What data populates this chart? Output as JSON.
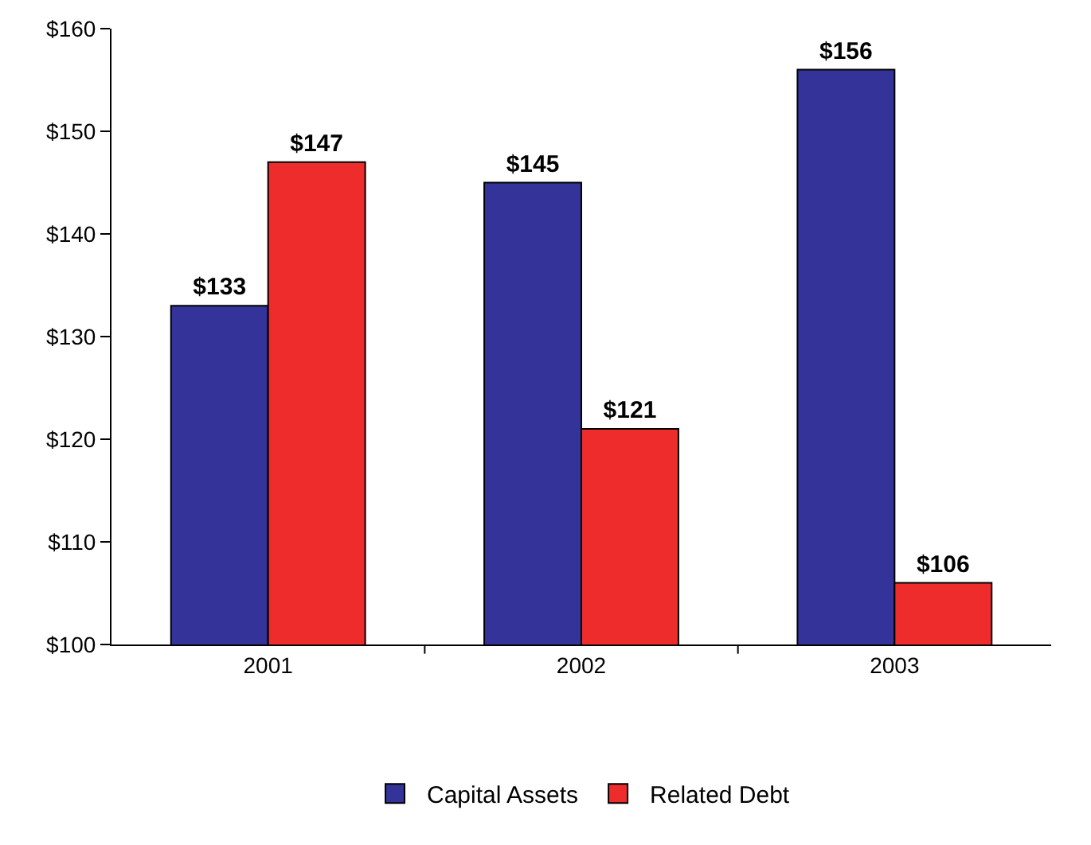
{
  "chart_data": {
    "type": "bar",
    "categories": [
      "2001",
      "2002",
      "2003"
    ],
    "series": [
      {
        "name": "Capital Assets",
        "color": "#333399",
        "values": [
          133,
          145,
          156
        ],
        "value_labels": [
          "$133",
          "$145",
          "$156"
        ]
      },
      {
        "name": "Related Debt",
        "color": "#ee2c2c",
        "values": [
          147,
          121,
          106
        ],
        "value_labels": [
          "$147",
          "$121",
          "$106"
        ]
      }
    ],
    "ylim": [
      100,
      160
    ],
    "yticks": [
      {
        "value": 100,
        "label": "$100"
      },
      {
        "value": 110,
        "label": "$110"
      },
      {
        "value": 120,
        "label": "$120"
      },
      {
        "value": 130,
        "label": "$130"
      },
      {
        "value": 140,
        "label": "$140"
      },
      {
        "value": 150,
        "label": "$150"
      },
      {
        "value": 160,
        "label": "$160"
      }
    ],
    "grid": false,
    "legend": "bottom"
  }
}
